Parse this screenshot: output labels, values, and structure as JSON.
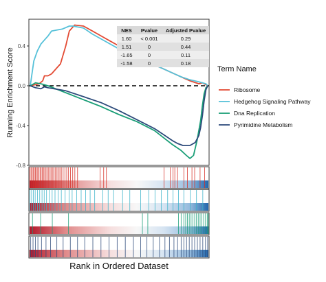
{
  "chart_data": {
    "type": "line",
    "ylabel": "Running Enrichment Score",
    "xlabel": "Rank in Ordered Dataset",
    "xlim": [
      0,
      100
    ],
    "ylim": [
      -0.8,
      0.6
    ],
    "yticks": [
      0.4,
      0.0,
      -0.4,
      -0.8
    ],
    "ytick_labels": [
      "0.4",
      "0.0",
      "-0.4",
      "-0.8"
    ],
    "reference_line": {
      "y": 0,
      "style": "dashed"
    },
    "grid": false,
    "legend": {
      "title": "Term Name",
      "placement": "right",
      "entries": [
        "Ribosome",
        "Hedgehog Signaling Pathway",
        "Dna Replication",
        "Pyrimidine Metabolism"
      ]
    },
    "table": {
      "headers": [
        "NES",
        "Pvalue",
        "Adjusted Pvalue"
      ],
      "rows": [
        [
          "1.60",
          "< 0.001",
          "0.29"
        ],
        [
          "1.51",
          "0",
          "0.44"
        ],
        [
          "-1.65",
          "0",
          "0.11"
        ],
        [
          "-1.58",
          "0",
          "0.18"
        ]
      ]
    },
    "series": [
      {
        "name": "Ribosome",
        "color": "#e34a33",
        "x": [
          0,
          5,
          7,
          8,
          10,
          12,
          15,
          17,
          20,
          22,
          25,
          30,
          35,
          40,
          45,
          50,
          55,
          60,
          65,
          70,
          75,
          80,
          85,
          90,
          95,
          97,
          99,
          100
        ],
        "y": [
          0.0,
          0.02,
          0.05,
          0.1,
          0.1,
          0.12,
          0.18,
          0.22,
          0.4,
          0.55,
          0.61,
          0.6,
          0.55,
          0.5,
          0.45,
          0.4,
          0.35,
          0.3,
          0.26,
          0.21,
          0.17,
          0.13,
          0.09,
          0.05,
          0.02,
          0.03,
          0.01,
          0.0
        ]
      },
      {
        "name": "Hedgehog Signaling Pathway",
        "color": "#56c1d9",
        "x": [
          0,
          2,
          4,
          6,
          8,
          10,
          12,
          15,
          18,
          22,
          24,
          30,
          35,
          40,
          45,
          50,
          55,
          60,
          65,
          70,
          75,
          80,
          85,
          90,
          95,
          97,
          99,
          100
        ],
        "y": [
          0.0,
          0.25,
          0.35,
          0.42,
          0.46,
          0.5,
          0.55,
          0.56,
          0.57,
          0.6,
          0.6,
          0.58,
          0.52,
          0.47,
          0.42,
          0.37,
          0.33,
          0.29,
          0.25,
          0.21,
          0.17,
          0.13,
          0.09,
          0.06,
          0.04,
          0.03,
          0.02,
          0.0
        ]
      },
      {
        "name": "Dna Replication",
        "color": "#1a9e77",
        "x": [
          0,
          3,
          6,
          10,
          20,
          30,
          40,
          50,
          60,
          70,
          75,
          80,
          85,
          88,
          90,
          92,
          94,
          96,
          97,
          98,
          99,
          100
        ],
        "y": [
          0.0,
          0.03,
          0.02,
          0.0,
          -0.07,
          -0.14,
          -0.21,
          -0.29,
          -0.36,
          -0.45,
          -0.52,
          -0.59,
          -0.65,
          -0.7,
          -0.73,
          -0.7,
          -0.55,
          -0.35,
          -0.2,
          -0.08,
          -0.02,
          0.0
        ]
      },
      {
        "name": "Pyrimidine Metabolism",
        "color": "#2c4a7a",
        "x": [
          0,
          3,
          6,
          8,
          10,
          20,
          30,
          40,
          50,
          60,
          70,
          75,
          80,
          83,
          86,
          90,
          93,
          95,
          96,
          97,
          98,
          99,
          100
        ],
        "y": [
          0.0,
          -0.02,
          -0.03,
          -0.01,
          -0.02,
          -0.05,
          -0.11,
          -0.17,
          -0.25,
          -0.34,
          -0.43,
          -0.49,
          -0.55,
          -0.58,
          -0.6,
          -0.6,
          -0.57,
          -0.5,
          -0.42,
          -0.3,
          -0.15,
          -0.04,
          0.0
        ]
      }
    ],
    "rug_strips": [
      {
        "term": "Ribosome",
        "color": "#d73027",
        "positions": [
          0.5,
          1.2,
          1.8,
          2.4,
          3.0,
          3.6,
          4.2,
          4.9,
          5.5,
          6.2,
          6.8,
          7.5,
          8.1,
          8.8,
          9.5,
          10.2,
          11.0,
          11.8,
          12.5,
          13.3,
          14.0,
          14.8,
          15.6,
          16.4,
          17.2,
          18.0,
          19.0,
          20.0,
          21.0,
          22.0,
          23.1,
          24.3,
          25.5,
          27.0,
          39.5,
          41.5,
          43.0,
          75.0,
          78.5,
          80.0,
          81.0,
          82.5,
          86.0,
          88.0,
          90.5,
          92.0,
          95.0,
          97.5
        ]
      },
      {
        "term": "Hedgehog Signaling Pathway",
        "color": "#3bb3c9",
        "positions": [
          0.6,
          1.5,
          2.5,
          3.5,
          4.8,
          6.0,
          7.3,
          8.5,
          9.8,
          11.3,
          12.9,
          14.5,
          16.2,
          18.0,
          20.1,
          22.3,
          24.0,
          26.5,
          29.0,
          31.5,
          34.0,
          36.5,
          41.0,
          44.0,
          47.0,
          52.0,
          56.0,
          62.0,
          66.5,
          70.0,
          73.5,
          77.0,
          80.0,
          83.0,
          86.0,
          89.5,
          93.0,
          96.5
        ]
      },
      {
        "term": "Dna Replication",
        "color": "#1a9e77",
        "positions": [
          2.0,
          6.5,
          13.0,
          22.0,
          63.0,
          66.0,
          83.0,
          84.5,
          86.0,
          87.0,
          88.0,
          89.0,
          90.0,
          91.0,
          92.0,
          93.0,
          94.0,
          95.0,
          96.0,
          97.0,
          98.0,
          99.0,
          99.6
        ]
      },
      {
        "term": "Pyrimidine Metabolism",
        "color": "#2c4a7a",
        "positions": [
          1.0,
          2.3,
          3.6,
          5.0,
          7.0,
          9.5,
          12.0,
          15.5,
          19.0,
          23.0,
          27.0,
          31.0,
          35.5,
          40.0,
          44.5,
          49.0,
          53.5,
          58.0,
          62.0,
          65.5,
          69.0,
          72.5,
          75.5,
          78.0,
          80.5,
          82.5,
          84.5,
          86.0,
          87.5,
          89.0,
          90.5,
          92.0,
          93.5,
          95.0,
          96.5,
          98.0,
          99.2
        ]
      }
    ]
  }
}
